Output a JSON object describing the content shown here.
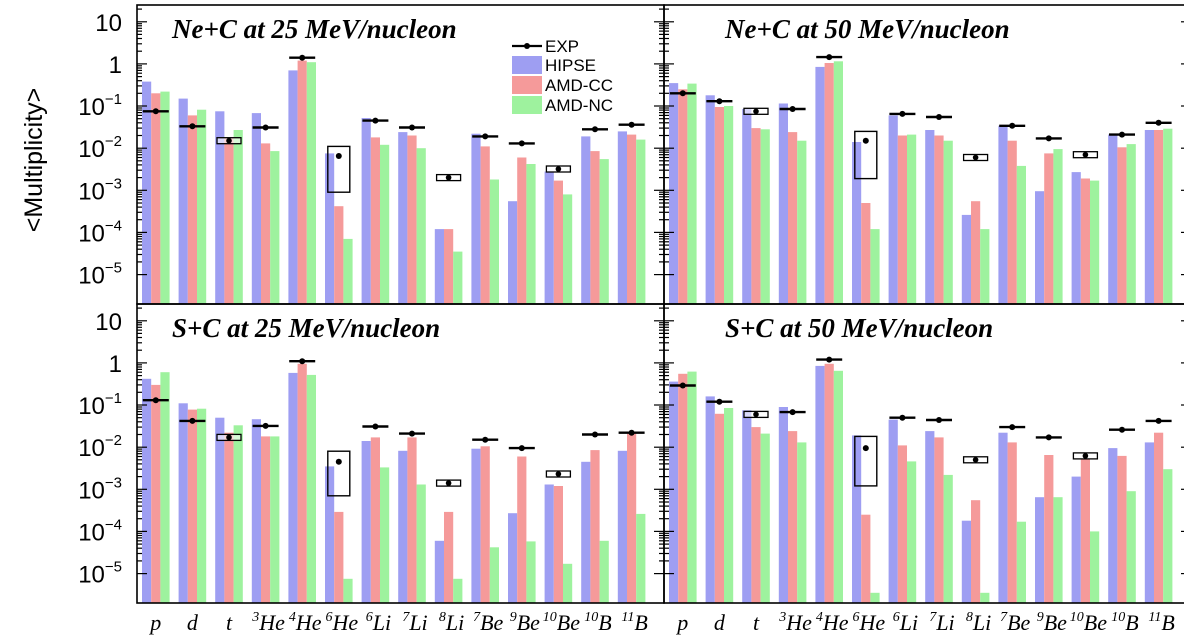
{
  "chart_data": {
    "type": "bar",
    "ylabel": "<Multiplicity>",
    "yscale": "log",
    "ylim": [
      2e-06,
      25
    ],
    "y_tick_labels": [
      {
        "base": "10",
        "exp": "",
        "value": 10
      },
      {
        "base": "1",
        "exp": "",
        "value": 1
      },
      {
        "base": "10",
        "exp": "−1",
        "value": 0.1
      },
      {
        "base": "10",
        "exp": "−2",
        "value": 0.01
      },
      {
        "base": "10",
        "exp": "−3",
        "value": 0.001
      },
      {
        "base": "10",
        "exp": "−4",
        "value": 0.0001
      },
      {
        "base": "10",
        "exp": "−5",
        "value": 1e-05
      }
    ],
    "categories": [
      {
        "sup": "",
        "name": "p"
      },
      {
        "sup": "",
        "name": "d"
      },
      {
        "sup": "",
        "name": "t"
      },
      {
        "sup": "3",
        "name": "He"
      },
      {
        "sup": "4",
        "name": "He"
      },
      {
        "sup": "6",
        "name": "He"
      },
      {
        "sup": "6",
        "name": "Li"
      },
      {
        "sup": "7",
        "name": "Li"
      },
      {
        "sup": "8",
        "name": "Li"
      },
      {
        "sup": "7",
        "name": "Be"
      },
      {
        "sup": "9",
        "name": "Be"
      },
      {
        "sup": "10",
        "name": "Be"
      },
      {
        "sup": "10",
        "name": "B"
      },
      {
        "sup": "11",
        "name": "B"
      }
    ],
    "legend": {
      "position": "top-right of first panel",
      "exp_label": "EXP",
      "items": [
        {
          "name": "HIPSE",
          "color": "#9e9ef2"
        },
        {
          "name": "AMD-CC",
          "color": "#f59a9a"
        },
        {
          "name": "AMD-NC",
          "color": "#9ef29e"
        }
      ]
    },
    "panels": [
      {
        "title": "Ne+C at 25 MeV/nucleon",
        "exp": [
          0.075,
          0.033,
          0.015,
          0.031,
          1.4,
          0.0065,
          0.045,
          0.031,
          0.002,
          0.019,
          0.013,
          0.0032,
          0.028,
          0.036
        ],
        "hipse": [
          0.38,
          0.15,
          0.075,
          0.068,
          0.7,
          0.0075,
          0.052,
          0.024,
          0.00012,
          0.022,
          0.00055,
          0.0028,
          0.019,
          0.025
        ],
        "amd_cc": [
          0.2,
          0.06,
          0.018,
          0.013,
          1.2,
          0.00042,
          0.018,
          0.02,
          0.00012,
          0.011,
          0.006,
          0.0017,
          0.0085,
          0.021
        ],
        "amd_nc": [
          0.22,
          0.082,
          0.027,
          0.0085,
          1.1,
          7e-05,
          0.012,
          0.01,
          3.5e-05,
          0.0018,
          0.0042,
          0.0008,
          0.0055,
          0.016
        ],
        "exp_box": [
          false,
          false,
          true,
          false,
          false,
          true,
          false,
          false,
          true,
          false,
          false,
          true,
          false,
          false
        ],
        "box_range": {
          "5": [
            0.0009,
            0.011
          ]
        }
      },
      {
        "title": "Ne+C at 50 MeV/nucleon",
        "exp": [
          0.2,
          0.13,
          0.075,
          0.085,
          1.45,
          0.015,
          0.065,
          0.055,
          0.006,
          0.034,
          0.017,
          0.007,
          0.021,
          0.04
        ],
        "hipse": [
          0.35,
          0.18,
          0.085,
          0.115,
          0.85,
          0.014,
          0.06,
          0.027,
          0.00026,
          0.034,
          0.00095,
          0.0027,
          0.021,
          0.027
        ],
        "amd_cc": [
          0.25,
          0.095,
          0.03,
          0.024,
          1.05,
          0.0005,
          0.02,
          0.02,
          0.00055,
          0.015,
          0.0075,
          0.0019,
          0.0105,
          0.027
        ],
        "amd_nc": [
          0.34,
          0.1,
          0.028,
          0.015,
          1.15,
          0.00012,
          0.021,
          0.015,
          0.00012,
          0.0038,
          0.0095,
          0.0017,
          0.0125,
          0.029
        ],
        "exp_box": [
          false,
          false,
          true,
          false,
          false,
          true,
          false,
          false,
          true,
          false,
          false,
          true,
          false,
          false
        ],
        "box_range": {
          "5": [
            0.0019,
            0.025
          ]
        }
      },
      {
        "title": "S+C at 25 MeV/nucleon",
        "exp": [
          0.13,
          0.042,
          0.017,
          0.032,
          1.1,
          0.0045,
          0.031,
          0.021,
          0.0014,
          0.015,
          0.0095,
          0.0023,
          0.02,
          0.022
        ],
        "hipse": [
          0.42,
          0.11,
          0.05,
          0.046,
          0.58,
          0.0035,
          0.014,
          0.0082,
          6e-05,
          0.0092,
          0.00027,
          0.0013,
          0.0045,
          0.0082
        ],
        "amd_cc": [
          0.3,
          0.078,
          0.022,
          0.018,
          0.95,
          0.00029,
          0.017,
          0.017,
          0.00029,
          0.0105,
          0.006,
          0.0012,
          0.0085,
          0.021
        ],
        "amd_nc": [
          0.6,
          0.082,
          0.033,
          0.018,
          0.52,
          7.5e-06,
          0.0033,
          0.0013,
          7.5e-06,
          4.2e-05,
          5.8e-05,
          1.7e-05,
          6e-05,
          0.00026
        ],
        "exp_box": [
          false,
          false,
          true,
          false,
          false,
          true,
          false,
          false,
          true,
          false,
          false,
          true,
          false,
          false
        ],
        "box_range": {
          "5": [
            0.0007,
            0.008
          ]
        }
      },
      {
        "title": "S+C at 50 MeV/nucleon",
        "exp": [
          0.29,
          0.12,
          0.06,
          0.068,
          1.2,
          0.0095,
          0.05,
          0.044,
          0.005,
          0.03,
          0.017,
          0.0062,
          0.026,
          0.042
        ],
        "hipse": [
          0.36,
          0.16,
          0.075,
          0.09,
          0.85,
          0.019,
          0.045,
          0.024,
          0.00018,
          0.022,
          0.00065,
          0.002,
          0.0095,
          0.013
        ],
        "amd_cc": [
          0.55,
          0.062,
          0.03,
          0.024,
          0.95,
          0.00025,
          0.011,
          0.017,
          0.00055,
          0.013,
          0.0065,
          0.0052,
          0.0062,
          0.022
        ],
        "amd_nc": [
          0.62,
          0.085,
          0.021,
          0.013,
          0.65,
          3.5e-06,
          0.0046,
          0.0022,
          3.5e-06,
          0.00017,
          0.00065,
          0.0001,
          0.0009,
          0.003
        ],
        "exp_box": [
          false,
          false,
          true,
          false,
          false,
          true,
          false,
          false,
          true,
          false,
          false,
          true,
          false,
          false
        ],
        "box_range": {
          "5": [
            0.0012,
            0.018
          ]
        }
      }
    ]
  }
}
